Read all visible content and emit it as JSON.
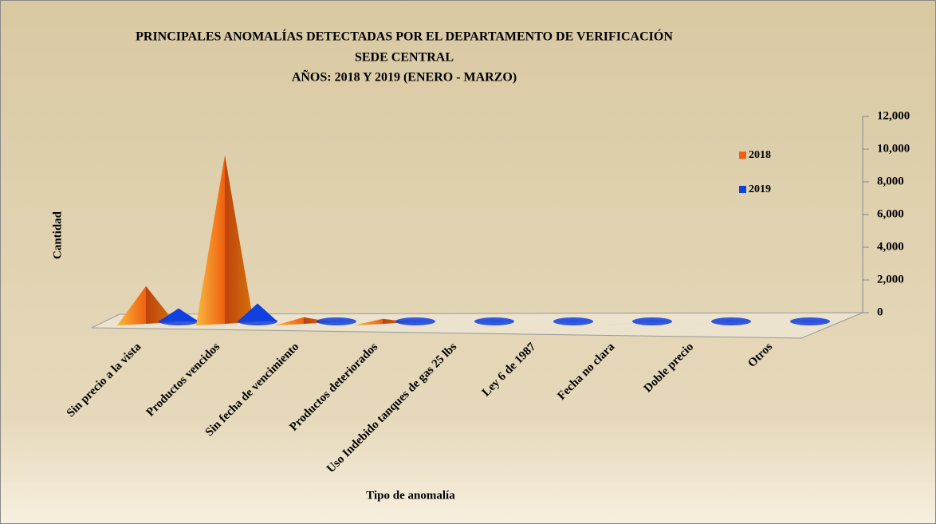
{
  "chart_data": {
    "type": "bar3d",
    "title": [
      "PRINCIPALES ANOMALÍAS DETECTADAS POR EL DEPARTAMENTO DE VERIFICACIÓN",
      "SEDE CENTRAL",
      "AÑOS: 2018 Y 2019  (ENERO - MARZO)"
    ],
    "y_label": "Cantidad",
    "x_label": "Tipo de anomalía",
    "categories": [
      "Sin precio a la vista",
      "Productos vencidos",
      "Sin fecha de vencimiento",
      "Productos deteriorados",
      "Uso Indebido tanques de gas 25 lbs",
      "Ley 6 de 1987",
      "Fecha no clara",
      "Doble precio",
      "Otros"
    ],
    "series": [
      {
        "name": "2018",
        "color": "#f06010",
        "values": [
          2400,
          10400,
          500,
          400,
          100,
          100,
          100,
          100,
          100
        ]
      },
      {
        "name": "2019",
        "color": "#1040e0",
        "values": [
          800,
          1100,
          50,
          50,
          50,
          50,
          50,
          50,
          50
        ]
      }
    ],
    "ylim": [
      0,
      12000
    ],
    "yticks": [
      0,
      {
        "value": 2000,
        "label": "2,000"
      },
      {
        "value": 4000,
        "label": "4,000"
      },
      {
        "value": 6000,
        "label": "6,000"
      },
      {
        "value": 8000,
        "label": "8,000"
      },
      {
        "value": 10000,
        "label": "10,000"
      },
      {
        "value": 12000,
        "label": "12,000"
      }
    ],
    "legend": "right"
  }
}
